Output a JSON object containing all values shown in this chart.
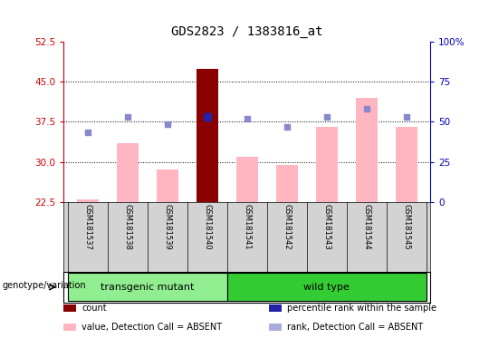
{
  "title": "GDS2823 / 1383816_at",
  "samples": [
    "GSM181537",
    "GSM181538",
    "GSM181539",
    "GSM181540",
    "GSM181541",
    "GSM181542",
    "GSM181543",
    "GSM181544",
    "GSM181545"
  ],
  "groups": [
    {
      "label": "transgenic mutant",
      "indices": [
        0,
        1,
        2,
        3
      ],
      "color": "#90EE90"
    },
    {
      "label": "wild type",
      "indices": [
        4,
        5,
        6,
        7,
        8
      ],
      "color": "#33CC33"
    }
  ],
  "value_bars": [
    23.0,
    33.5,
    28.5,
    47.5,
    31.0,
    29.5,
    36.5,
    42.0,
    36.5
  ],
  "rank_dots": [
    35.5,
    38.5,
    37.0,
    38.5,
    38.0,
    36.5,
    38.5,
    40.0,
    38.5
  ],
  "count_bar_index": 3,
  "count_bar_value": 47.5,
  "percentile_rank_index": 3,
  "percentile_rank_dot": 38.5,
  "left_ylim": [
    22.5,
    52.5
  ],
  "left_yticks": [
    22.5,
    30.0,
    37.5,
    45.0,
    52.5
  ],
  "right_ylim": [
    0,
    100
  ],
  "right_yticks": [
    0,
    25,
    50,
    75,
    100
  ],
  "right_yticklabels": [
    "0",
    "25",
    "50",
    "75",
    "100%"
  ],
  "bar_color_pink": "#FFB6C1",
  "bar_color_red": "#8B0000",
  "dot_color_blue": "#8888CC",
  "dot_color_darkblue": "#2222AA",
  "left_axis_color": "#CC0000",
  "right_axis_color": "#0000BB",
  "bg_sample": "#D3D3D3",
  "legend_items": [
    {
      "color": "#8B0000",
      "label": "count"
    },
    {
      "color": "#2222AA",
      "label": "percentile rank within the sample"
    },
    {
      "color": "#FFB6C1",
      "label": "value, Detection Call = ABSENT"
    },
    {
      "color": "#AAAADD",
      "label": "rank, Detection Call = ABSENT"
    }
  ]
}
